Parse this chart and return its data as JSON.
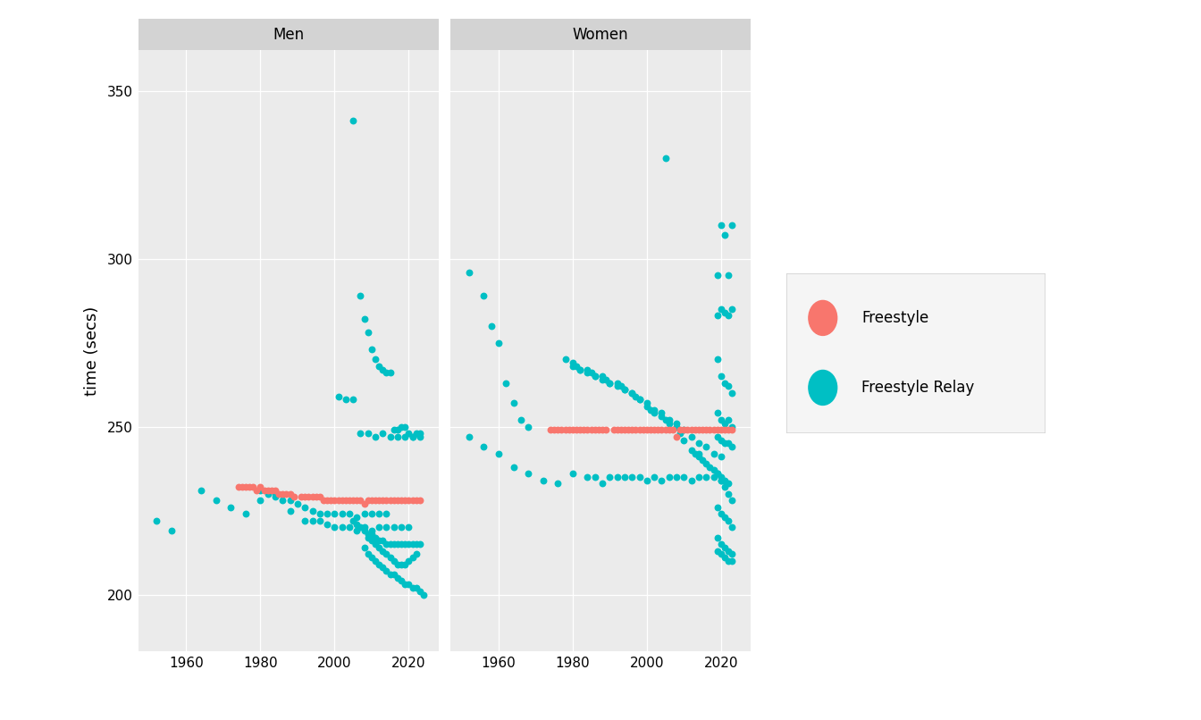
{
  "freestyle_color": "#F8766D",
  "relay_color": "#00BFC4",
  "panel_background": "#EBEBEB",
  "strip_background": "#D3D3D3",
  "ylabel": "time (secs)",
  "ylim": [
    183,
    362
  ],
  "yticks": [
    200,
    250,
    300,
    350
  ],
  "xlim": [
    1947,
    2028
  ],
  "xticks": [
    1960,
    1980,
    2000,
    2020
  ],
  "men_freestyle": [
    [
      1976,
      232
    ],
    [
      1980,
      232
    ],
    [
      1984,
      231
    ],
    [
      1988,
      230
    ],
    [
      1992,
      229
    ],
    [
      1996,
      229
    ],
    [
      2000,
      228
    ],
    [
      2004,
      228
    ],
    [
      2008,
      227
    ],
    [
      2012,
      228
    ],
    [
      2016,
      228
    ],
    [
      2020,
      228
    ],
    [
      1978,
      232
    ],
    [
      1982,
      231
    ],
    [
      1986,
      230
    ],
    [
      1994,
      229
    ],
    [
      1998,
      228
    ],
    [
      2002,
      228
    ],
    [
      2006,
      228
    ],
    [
      2010,
      228
    ],
    [
      2014,
      228
    ],
    [
      2018,
      228
    ],
    [
      1974,
      232
    ],
    [
      1975,
      232
    ],
    [
      1977,
      232
    ],
    [
      1979,
      231
    ],
    [
      1981,
      231
    ],
    [
      1983,
      231
    ],
    [
      1985,
      230
    ],
    [
      1987,
      230
    ],
    [
      1989,
      229
    ],
    [
      1991,
      229
    ],
    [
      1993,
      229
    ],
    [
      1995,
      229
    ],
    [
      1997,
      228
    ],
    [
      1999,
      228
    ],
    [
      2001,
      228
    ],
    [
      2003,
      228
    ],
    [
      2005,
      228
    ],
    [
      2007,
      228
    ],
    [
      2009,
      228
    ],
    [
      2011,
      228
    ],
    [
      2013,
      228
    ],
    [
      2015,
      228
    ],
    [
      2017,
      228
    ],
    [
      2019,
      228
    ],
    [
      2021,
      228
    ],
    [
      2022,
      228
    ],
    [
      2023,
      228
    ]
  ],
  "men_relay": [
    [
      1952,
      222
    ],
    [
      1956,
      219
    ],
    [
      1964,
      231
    ],
    [
      1968,
      228
    ],
    [
      1972,
      226
    ],
    [
      1976,
      224
    ],
    [
      1980,
      228
    ],
    [
      1984,
      230
    ],
    [
      1988,
      225
    ],
    [
      1992,
      222
    ],
    [
      1996,
      222
    ],
    [
      2000,
      220
    ],
    [
      2004,
      220
    ],
    [
      2008,
      220
    ],
    [
      2012,
      220
    ],
    [
      2016,
      220
    ],
    [
      2020,
      220
    ],
    [
      1994,
      222
    ],
    [
      1998,
      221
    ],
    [
      2002,
      220
    ],
    [
      2006,
      219
    ],
    [
      2010,
      219
    ],
    [
      2014,
      220
    ],
    [
      2018,
      220
    ],
    [
      1980,
      231
    ],
    [
      1982,
      230
    ],
    [
      1984,
      229
    ],
    [
      1986,
      228
    ],
    [
      1988,
      228
    ],
    [
      1990,
      227
    ],
    [
      1992,
      226
    ],
    [
      1994,
      225
    ],
    [
      1996,
      224
    ],
    [
      1998,
      224
    ],
    [
      2000,
      224
    ],
    [
      2002,
      224
    ],
    [
      2004,
      224
    ],
    [
      2006,
      223
    ],
    [
      2008,
      224
    ],
    [
      2010,
      224
    ],
    [
      2012,
      224
    ],
    [
      2014,
      224
    ],
    [
      2008,
      214
    ],
    [
      2009,
      212
    ],
    [
      2010,
      211
    ],
    [
      2011,
      210
    ],
    [
      2012,
      209
    ],
    [
      2013,
      208
    ],
    [
      2014,
      207
    ],
    [
      2015,
      206
    ],
    [
      2016,
      206
    ],
    [
      2017,
      205
    ],
    [
      2018,
      204
    ],
    [
      2019,
      203
    ],
    [
      2020,
      203
    ],
    [
      2021,
      202
    ],
    [
      2022,
      202
    ],
    [
      2023,
      201
    ],
    [
      2024,
      200
    ],
    [
      2009,
      217
    ],
    [
      2010,
      216
    ],
    [
      2011,
      215
    ],
    [
      2012,
      214
    ],
    [
      2013,
      213
    ],
    [
      2014,
      212
    ],
    [
      2015,
      211
    ],
    [
      2016,
      210
    ],
    [
      2017,
      209
    ],
    [
      2018,
      209
    ],
    [
      2019,
      209
    ],
    [
      2020,
      210
    ],
    [
      2021,
      211
    ],
    [
      2022,
      212
    ],
    [
      2005,
      222
    ],
    [
      2006,
      221
    ],
    [
      2007,
      220
    ],
    [
      2008,
      219
    ],
    [
      2009,
      218
    ],
    [
      2010,
      218
    ],
    [
      2011,
      217
    ],
    [
      2012,
      216
    ],
    [
      2013,
      216
    ],
    [
      2014,
      215
    ],
    [
      2015,
      215
    ],
    [
      2016,
      215
    ],
    [
      2017,
      215
    ],
    [
      2018,
      215
    ],
    [
      2019,
      215
    ],
    [
      2020,
      215
    ],
    [
      2021,
      215
    ],
    [
      2022,
      215
    ],
    [
      2023,
      215
    ],
    [
      2005,
      341
    ],
    [
      2007,
      289
    ],
    [
      2008,
      282
    ],
    [
      2009,
      278
    ],
    [
      2010,
      273
    ],
    [
      2011,
      270
    ],
    [
      2012,
      268
    ],
    [
      2013,
      267
    ],
    [
      2014,
      266
    ],
    [
      2015,
      266
    ],
    [
      2001,
      259
    ],
    [
      2003,
      258
    ],
    [
      2005,
      258
    ],
    [
      2007,
      248
    ],
    [
      2009,
      248
    ],
    [
      2011,
      247
    ],
    [
      2013,
      248
    ],
    [
      2015,
      247
    ],
    [
      2017,
      247
    ],
    [
      2019,
      247
    ],
    [
      2021,
      247
    ],
    [
      2023,
      247
    ],
    [
      2016,
      249
    ],
    [
      2017,
      249
    ],
    [
      2018,
      250
    ],
    [
      2019,
      250
    ],
    [
      2020,
      248
    ],
    [
      2021,
      247
    ],
    [
      2022,
      248
    ],
    [
      2023,
      248
    ]
  ],
  "women_freestyle": [
    [
      1976,
      249
    ],
    [
      1980,
      249
    ],
    [
      1984,
      249
    ],
    [
      1988,
      249
    ],
    [
      1992,
      249
    ],
    [
      1996,
      249
    ],
    [
      2000,
      249
    ],
    [
      2004,
      249
    ],
    [
      2008,
      247
    ],
    [
      2012,
      249
    ],
    [
      2016,
      249
    ],
    [
      2020,
      249
    ],
    [
      1978,
      249
    ],
    [
      1982,
      249
    ],
    [
      1986,
      249
    ],
    [
      1994,
      249
    ],
    [
      1998,
      249
    ],
    [
      2002,
      249
    ],
    [
      2006,
      249
    ],
    [
      2010,
      249
    ],
    [
      2014,
      249
    ],
    [
      2018,
      249
    ],
    [
      1974,
      249
    ],
    [
      1975,
      249
    ],
    [
      1977,
      249
    ],
    [
      1979,
      249
    ],
    [
      1981,
      249
    ],
    [
      1983,
      249
    ],
    [
      1985,
      249
    ],
    [
      1987,
      249
    ],
    [
      1989,
      249
    ],
    [
      1991,
      249
    ],
    [
      1993,
      249
    ],
    [
      1995,
      249
    ],
    [
      1997,
      249
    ],
    [
      1999,
      249
    ],
    [
      2001,
      249
    ],
    [
      2003,
      249
    ],
    [
      2005,
      249
    ],
    [
      2007,
      249
    ],
    [
      2009,
      249
    ],
    [
      2011,
      249
    ],
    [
      2013,
      249
    ],
    [
      2015,
      249
    ],
    [
      2017,
      249
    ],
    [
      2019,
      249
    ],
    [
      2021,
      249
    ],
    [
      2022,
      249
    ],
    [
      2023,
      249
    ]
  ],
  "women_relay": [
    [
      1952,
      296
    ],
    [
      1956,
      289
    ],
    [
      1958,
      280
    ],
    [
      1960,
      275
    ],
    [
      1962,
      263
    ],
    [
      1964,
      257
    ],
    [
      1966,
      252
    ],
    [
      1968,
      250
    ],
    [
      1952,
      247
    ],
    [
      1956,
      244
    ],
    [
      1960,
      242
    ],
    [
      1964,
      238
    ],
    [
      1968,
      236
    ],
    [
      1972,
      234
    ],
    [
      1976,
      233
    ],
    [
      1980,
      236
    ],
    [
      1984,
      235
    ],
    [
      1988,
      233
    ],
    [
      1992,
      235
    ],
    [
      1996,
      235
    ],
    [
      2000,
      234
    ],
    [
      2004,
      234
    ],
    [
      2008,
      235
    ],
    [
      2012,
      234
    ],
    [
      2016,
      235
    ],
    [
      2020,
      234
    ],
    [
      1994,
      235
    ],
    [
      1998,
      235
    ],
    [
      2002,
      235
    ],
    [
      2006,
      235
    ],
    [
      2010,
      235
    ],
    [
      2014,
      235
    ],
    [
      2018,
      235
    ],
    [
      1990,
      235
    ],
    [
      1986,
      235
    ],
    [
      1978,
      270
    ],
    [
      1980,
      268
    ],
    [
      1982,
      267
    ],
    [
      1984,
      266
    ],
    [
      1986,
      265
    ],
    [
      1988,
      264
    ],
    [
      1990,
      263
    ],
    [
      1992,
      262
    ],
    [
      1994,
      261
    ],
    [
      1996,
      260
    ],
    [
      1998,
      258
    ],
    [
      2000,
      257
    ],
    [
      2002,
      255
    ],
    [
      2004,
      254
    ],
    [
      2006,
      252
    ],
    [
      2008,
      251
    ],
    [
      2010,
      249
    ],
    [
      2012,
      247
    ],
    [
      2014,
      245
    ],
    [
      2016,
      244
    ],
    [
      2018,
      242
    ],
    [
      2020,
      241
    ],
    [
      2014,
      242
    ],
    [
      2015,
      240
    ],
    [
      2016,
      239
    ],
    [
      2017,
      238
    ],
    [
      2018,
      237
    ],
    [
      2019,
      236
    ],
    [
      2020,
      235
    ],
    [
      2021,
      234
    ],
    [
      2022,
      233
    ],
    [
      2012,
      243
    ],
    [
      2013,
      242
    ],
    [
      2014,
      241
    ],
    [
      2008,
      250
    ],
    [
      2009,
      248
    ],
    [
      2010,
      246
    ],
    [
      2004,
      253
    ],
    [
      2005,
      252
    ],
    [
      2006,
      251
    ],
    [
      2000,
      256
    ],
    [
      2001,
      255
    ],
    [
      2002,
      254
    ],
    [
      1996,
      260
    ],
    [
      1997,
      259
    ],
    [
      1998,
      258
    ],
    [
      1992,
      263
    ],
    [
      1993,
      262
    ],
    [
      1994,
      261
    ],
    [
      1988,
      265
    ],
    [
      1989,
      264
    ],
    [
      1990,
      263
    ],
    [
      1984,
      267
    ],
    [
      1985,
      266
    ],
    [
      1986,
      265
    ],
    [
      1980,
      269
    ],
    [
      1981,
      268
    ],
    [
      1982,
      267
    ],
    [
      2005,
      330
    ],
    [
      2019,
      295
    ],
    [
      2020,
      310
    ],
    [
      2021,
      307
    ],
    [
      2022,
      295
    ],
    [
      2023,
      310
    ],
    [
      2019,
      283
    ],
    [
      2020,
      285
    ],
    [
      2021,
      284
    ],
    [
      2022,
      283
    ],
    [
      2023,
      285
    ],
    [
      2019,
      270
    ],
    [
      2020,
      265
    ],
    [
      2021,
      263
    ],
    [
      2022,
      262
    ],
    [
      2023,
      260
    ],
    [
      2019,
      254
    ],
    [
      2020,
      252
    ],
    [
      2021,
      251
    ],
    [
      2022,
      252
    ],
    [
      2023,
      250
    ],
    [
      2019,
      247
    ],
    [
      2020,
      246
    ],
    [
      2021,
      245
    ],
    [
      2022,
      245
    ],
    [
      2023,
      244
    ],
    [
      2019,
      236
    ],
    [
      2020,
      234
    ],
    [
      2021,
      232
    ],
    [
      2022,
      230
    ],
    [
      2023,
      228
    ],
    [
      2019,
      226
    ],
    [
      2020,
      224
    ],
    [
      2021,
      223
    ],
    [
      2022,
      222
    ],
    [
      2023,
      220
    ],
    [
      2019,
      217
    ],
    [
      2020,
      215
    ],
    [
      2021,
      214
    ],
    [
      2022,
      213
    ],
    [
      2023,
      212
    ],
    [
      2019,
      213
    ],
    [
      2020,
      212
    ],
    [
      2021,
      211
    ],
    [
      2022,
      210
    ],
    [
      2023,
      210
    ]
  ]
}
